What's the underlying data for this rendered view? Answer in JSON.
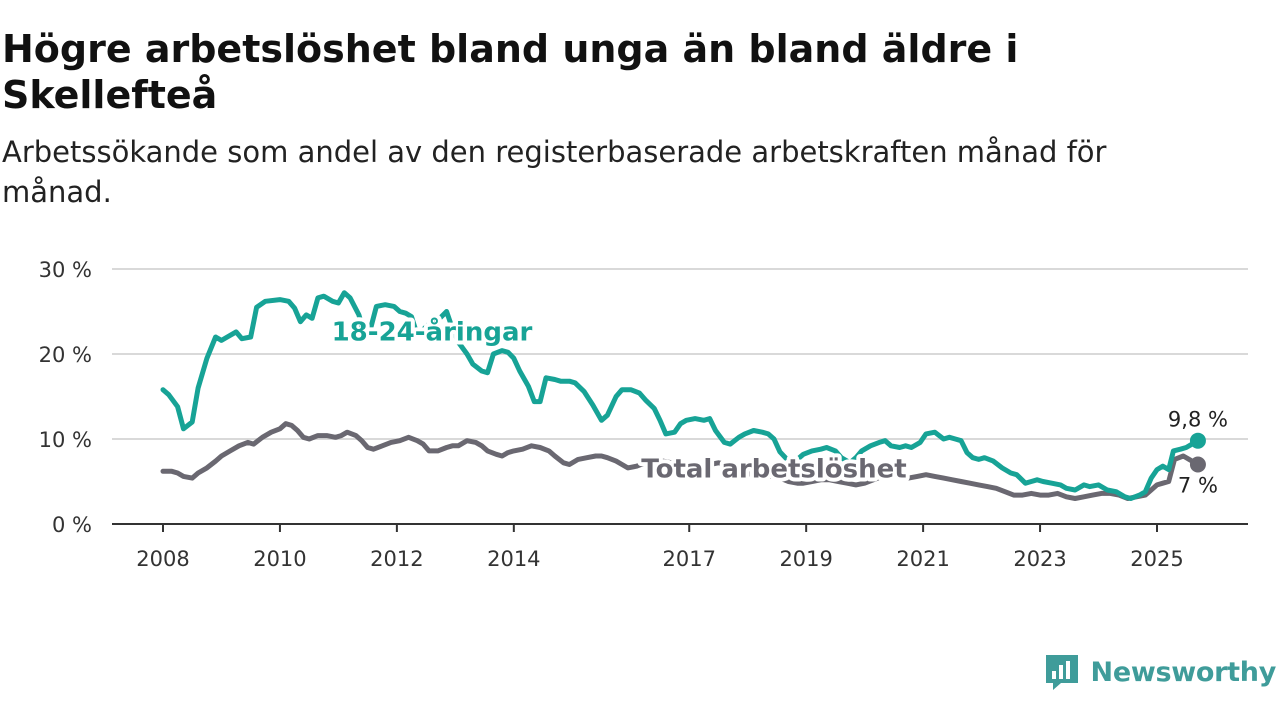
{
  "title": "Högre arbetslöshet bland unga än bland äldre i Skellefteå",
  "subtitle": "Arbetssökande som andel av den registerbaserade arbetskraften månad för månad.",
  "brand": "Newsworthy",
  "colors": {
    "youth": "#17a396",
    "total": "#6a6871",
    "grid": "#d9d9d9",
    "axis": "#333333",
    "brand": "#3f9c9a"
  },
  "chart_data": {
    "type": "line",
    "title": "Högre arbetslöshet bland unga än bland äldre i Skellefteå",
    "ylim": [
      0,
      30
    ],
    "yticks": [
      {
        "value": 0,
        "label": "0 %"
      },
      {
        "value": 10,
        "label": "10 %"
      },
      {
        "value": 20,
        "label": "20 %"
      },
      {
        "value": 30,
        "label": "30 %"
      }
    ],
    "xlim": [
      2007.9,
      2025.9
    ],
    "xticks": [
      {
        "value": 2008,
        "label": "2008"
      },
      {
        "value": 2010,
        "label": "2010"
      },
      {
        "value": 2012,
        "label": "2012"
      },
      {
        "value": 2014,
        "label": "2014"
      },
      {
        "value": 2017,
        "label": "2017"
      },
      {
        "value": 2019,
        "label": "2019"
      },
      {
        "value": 2021,
        "label": "2021"
      },
      {
        "value": 2023,
        "label": "2023"
      },
      {
        "value": 2025,
        "label": "2025"
      }
    ],
    "grid": true,
    "series": [
      {
        "name": "18-24-åringar",
        "label_at": [
          2012.6,
          21.6
        ],
        "end_label": "9,8 %",
        "end_value": 9.8,
        "points": [
          [
            2008.0,
            15.8
          ],
          [
            2008.1,
            15.2
          ],
          [
            2008.25,
            13.8
          ],
          [
            2008.35,
            11.2
          ],
          [
            2008.5,
            12.0
          ],
          [
            2008.6,
            16.0
          ],
          [
            2008.75,
            19.5
          ],
          [
            2008.9,
            22.0
          ],
          [
            2009.0,
            21.6
          ],
          [
            2009.1,
            22.0
          ],
          [
            2009.25,
            22.6
          ],
          [
            2009.35,
            21.8
          ],
          [
            2009.5,
            22.0
          ],
          [
            2009.6,
            25.5
          ],
          [
            2009.75,
            26.2
          ],
          [
            2010.0,
            26.4
          ],
          [
            2010.15,
            26.2
          ],
          [
            2010.25,
            25.4
          ],
          [
            2010.35,
            23.8
          ],
          [
            2010.45,
            24.6
          ],
          [
            2010.55,
            24.2
          ],
          [
            2010.65,
            26.6
          ],
          [
            2010.75,
            26.8
          ],
          [
            2010.9,
            26.2
          ],
          [
            2011.0,
            26.0
          ],
          [
            2011.1,
            27.2
          ],
          [
            2011.2,
            26.6
          ],
          [
            2011.35,
            24.6
          ],
          [
            2011.45,
            22.2
          ],
          [
            2011.55,
            23.0
          ],
          [
            2011.65,
            25.6
          ],
          [
            2011.8,
            25.8
          ],
          [
            2011.95,
            25.6
          ],
          [
            2012.05,
            25.0
          ],
          [
            2012.15,
            24.8
          ],
          [
            2012.25,
            24.4
          ],
          [
            2012.35,
            22.2
          ],
          [
            2012.5,
            23.2
          ],
          [
            2012.6,
            23.8
          ],
          [
            2012.75,
            24.3
          ],
          [
            2012.85,
            25.0
          ],
          [
            2012.95,
            23.0
          ],
          [
            2013.05,
            21.4
          ],
          [
            2013.2,
            20.0
          ],
          [
            2013.3,
            18.8
          ],
          [
            2013.45,
            18.0
          ],
          [
            2013.55,
            17.8
          ],
          [
            2013.65,
            20.0
          ],
          [
            2013.8,
            20.4
          ],
          [
            2013.9,
            20.2
          ],
          [
            2014.0,
            19.5
          ],
          [
            2014.1,
            18.0
          ],
          [
            2014.25,
            16.2
          ],
          [
            2014.35,
            14.4
          ],
          [
            2014.45,
            14.4
          ],
          [
            2014.55,
            17.2
          ],
          [
            2014.7,
            17.0
          ],
          [
            2014.8,
            16.8
          ],
          [
            2014.95,
            16.8
          ],
          [
            2015.05,
            16.6
          ],
          [
            2015.2,
            15.6
          ],
          [
            2015.35,
            14.0
          ],
          [
            2015.5,
            12.2
          ],
          [
            2015.6,
            12.8
          ],
          [
            2015.75,
            15.0
          ],
          [
            2015.85,
            15.8
          ],
          [
            2016.0,
            15.8
          ],
          [
            2016.15,
            15.4
          ],
          [
            2016.25,
            14.6
          ],
          [
            2016.4,
            13.6
          ],
          [
            2016.5,
            12.2
          ],
          [
            2016.6,
            10.6
          ],
          [
            2016.75,
            10.8
          ],
          [
            2016.85,
            11.8
          ],
          [
            2016.95,
            12.2
          ],
          [
            2017.1,
            12.4
          ],
          [
            2017.25,
            12.2
          ],
          [
            2017.35,
            12.4
          ],
          [
            2017.45,
            11.0
          ],
          [
            2017.6,
            9.6
          ],
          [
            2017.7,
            9.4
          ],
          [
            2017.85,
            10.2
          ],
          [
            2017.95,
            10.6
          ],
          [
            2018.1,
            11.0
          ],
          [
            2018.25,
            10.8
          ],
          [
            2018.35,
            10.6
          ],
          [
            2018.45,
            10.0
          ],
          [
            2018.55,
            8.5
          ],
          [
            2018.7,
            7.4
          ],
          [
            2018.85,
            7.6
          ],
          [
            2018.95,
            8.2
          ],
          [
            2019.1,
            8.6
          ],
          [
            2019.25,
            8.8
          ],
          [
            2019.35,
            9.0
          ],
          [
            2019.5,
            8.6
          ],
          [
            2019.6,
            7.8
          ],
          [
            2019.75,
            7.2
          ],
          [
            2019.85,
            7.8
          ],
          [
            2019.95,
            8.6
          ],
          [
            2020.1,
            9.2
          ],
          [
            2020.25,
            9.6
          ],
          [
            2020.35,
            9.8
          ],
          [
            2020.45,
            9.2
          ],
          [
            2020.6,
            9.0
          ],
          [
            2020.7,
            9.2
          ],
          [
            2020.8,
            9.0
          ],
          [
            2020.95,
            9.6
          ],
          [
            2021.05,
            10.6
          ],
          [
            2021.2,
            10.8
          ],
          [
            2021.35,
            10.0
          ],
          [
            2021.45,
            10.2
          ],
          [
            2021.55,
            10.0
          ],
          [
            2021.65,
            9.8
          ],
          [
            2021.75,
            8.4
          ],
          [
            2021.85,
            7.8
          ],
          [
            2021.95,
            7.6
          ],
          [
            2022.05,
            7.8
          ],
          [
            2022.2,
            7.4
          ],
          [
            2022.35,
            6.6
          ],
          [
            2022.5,
            6.0
          ],
          [
            2022.6,
            5.8
          ],
          [
            2022.75,
            4.8
          ],
          [
            2022.85,
            5.0
          ],
          [
            2022.95,
            5.2
          ],
          [
            2023.05,
            5.0
          ],
          [
            2023.2,
            4.8
          ],
          [
            2023.35,
            4.6
          ],
          [
            2023.45,
            4.2
          ],
          [
            2023.6,
            4.0
          ],
          [
            2023.75,
            4.6
          ],
          [
            2023.85,
            4.4
          ],
          [
            2024.0,
            4.6
          ],
          [
            2024.15,
            4.0
          ],
          [
            2024.3,
            3.8
          ],
          [
            2024.45,
            3.2
          ],
          [
            2024.55,
            3.0
          ],
          [
            2024.7,
            3.4
          ],
          [
            2024.8,
            3.8
          ],
          [
            2024.9,
            5.4
          ],
          [
            2025.0,
            6.4
          ],
          [
            2025.1,
            6.8
          ],
          [
            2025.2,
            6.4
          ],
          [
            2025.28,
            8.6
          ],
          [
            2025.4,
            8.8
          ],
          [
            2025.5,
            9.0
          ],
          [
            2025.6,
            9.4
          ],
          [
            2025.7,
            9.8
          ]
        ]
      },
      {
        "name": "Total arbetslöshet",
        "label_at": [
          2018.45,
          5.5
        ],
        "end_label": "7 %",
        "end_value": 7,
        "points": [
          [
            2008.0,
            6.2
          ],
          [
            2008.15,
            6.2
          ],
          [
            2008.25,
            6.0
          ],
          [
            2008.35,
            5.6
          ],
          [
            2008.5,
            5.4
          ],
          [
            2008.6,
            6.0
          ],
          [
            2008.75,
            6.6
          ],
          [
            2008.9,
            7.4
          ],
          [
            2009.0,
            8.0
          ],
          [
            2009.15,
            8.6
          ],
          [
            2009.3,
            9.2
          ],
          [
            2009.45,
            9.6
          ],
          [
            2009.55,
            9.4
          ],
          [
            2009.7,
            10.2
          ],
          [
            2009.85,
            10.8
          ],
          [
            2010.0,
            11.2
          ],
          [
            2010.1,
            11.8
          ],
          [
            2010.2,
            11.6
          ],
          [
            2010.3,
            11.0
          ],
          [
            2010.4,
            10.2
          ],
          [
            2010.5,
            10.0
          ],
          [
            2010.65,
            10.4
          ],
          [
            2010.8,
            10.4
          ],
          [
            2010.95,
            10.2
          ],
          [
            2011.05,
            10.4
          ],
          [
            2011.15,
            10.8
          ],
          [
            2011.3,
            10.4
          ],
          [
            2011.4,
            9.8
          ],
          [
            2011.5,
            9.0
          ],
          [
            2011.6,
            8.8
          ],
          [
            2011.75,
            9.2
          ],
          [
            2011.9,
            9.6
          ],
          [
            2012.05,
            9.8
          ],
          [
            2012.2,
            10.2
          ],
          [
            2012.35,
            9.8
          ],
          [
            2012.45,
            9.4
          ],
          [
            2012.55,
            8.6
          ],
          [
            2012.7,
            8.6
          ],
          [
            2012.85,
            9.0
          ],
          [
            2012.95,
            9.2
          ],
          [
            2013.05,
            9.2
          ],
          [
            2013.2,
            9.8
          ],
          [
            2013.35,
            9.6
          ],
          [
            2013.45,
            9.2
          ],
          [
            2013.55,
            8.6
          ],
          [
            2013.7,
            8.2
          ],
          [
            2013.8,
            8.0
          ],
          [
            2013.9,
            8.4
          ],
          [
            2014.0,
            8.6
          ],
          [
            2014.15,
            8.8
          ],
          [
            2014.3,
            9.2
          ],
          [
            2014.45,
            9.0
          ],
          [
            2014.6,
            8.6
          ],
          [
            2014.7,
            8.0
          ],
          [
            2014.85,
            7.2
          ],
          [
            2014.95,
            7.0
          ],
          [
            2015.1,
            7.6
          ],
          [
            2015.25,
            7.8
          ],
          [
            2015.4,
            8.0
          ],
          [
            2015.5,
            8.0
          ],
          [
            2015.6,
            7.8
          ],
          [
            2015.75,
            7.4
          ],
          [
            2015.85,
            7.0
          ],
          [
            2015.95,
            6.6
          ],
          [
            2016.1,
            6.8
          ],
          [
            2016.25,
            7.2
          ],
          [
            2016.4,
            7.4
          ],
          [
            2016.55,
            7.4
          ],
          [
            2016.7,
            7.2
          ],
          [
            2016.8,
            6.8
          ],
          [
            2016.9,
            6.2
          ],
          [
            2017.05,
            6.4
          ],
          [
            2017.2,
            6.8
          ],
          [
            2017.35,
            7.0
          ],
          [
            2017.5,
            7.2
          ],
          [
            2017.65,
            7.0
          ],
          [
            2017.8,
            6.6
          ],
          [
            2017.95,
            6.0
          ],
          [
            2018.1,
            5.8
          ],
          [
            2018.25,
            5.6
          ],
          [
            2018.4,
            5.6
          ],
          [
            2018.55,
            5.4
          ],
          [
            2018.7,
            5.0
          ],
          [
            2018.85,
            4.8
          ],
          [
            2018.95,
            4.8
          ],
          [
            2019.1,
            5.0
          ],
          [
            2019.25,
            5.2
          ],
          [
            2019.4,
            5.2
          ],
          [
            2019.55,
            5.0
          ],
          [
            2019.7,
            4.8
          ],
          [
            2019.85,
            4.6
          ],
          [
            2020.0,
            4.8
          ],
          [
            2020.15,
            5.2
          ],
          [
            2020.3,
            5.6
          ],
          [
            2020.45,
            5.8
          ],
          [
            2020.6,
            5.6
          ],
          [
            2020.75,
            5.4
          ],
          [
            2020.9,
            5.6
          ],
          [
            2021.05,
            5.8
          ],
          [
            2021.2,
            5.6
          ],
          [
            2021.35,
            5.4
          ],
          [
            2021.5,
            5.2
          ],
          [
            2021.65,
            5.0
          ],
          [
            2021.8,
            4.8
          ],
          [
            2021.95,
            4.6
          ],
          [
            2022.1,
            4.4
          ],
          [
            2022.25,
            4.2
          ],
          [
            2022.4,
            3.8
          ],
          [
            2022.55,
            3.4
          ],
          [
            2022.7,
            3.4
          ],
          [
            2022.85,
            3.6
          ],
          [
            2023.0,
            3.4
          ],
          [
            2023.15,
            3.4
          ],
          [
            2023.3,
            3.6
          ],
          [
            2023.45,
            3.2
          ],
          [
            2023.6,
            3.0
          ],
          [
            2023.75,
            3.2
          ],
          [
            2023.9,
            3.4
          ],
          [
            2024.05,
            3.6
          ],
          [
            2024.2,
            3.6
          ],
          [
            2024.35,
            3.4
          ],
          [
            2024.5,
            3.0
          ],
          [
            2024.65,
            3.2
          ],
          [
            2024.8,
            3.4
          ],
          [
            2024.9,
            4.0
          ],
          [
            2025.0,
            4.6
          ],
          [
            2025.1,
            4.8
          ],
          [
            2025.2,
            5.0
          ],
          [
            2025.3,
            7.6
          ],
          [
            2025.45,
            8.0
          ],
          [
            2025.55,
            7.6
          ],
          [
            2025.7,
            7.0
          ]
        ]
      }
    ]
  }
}
